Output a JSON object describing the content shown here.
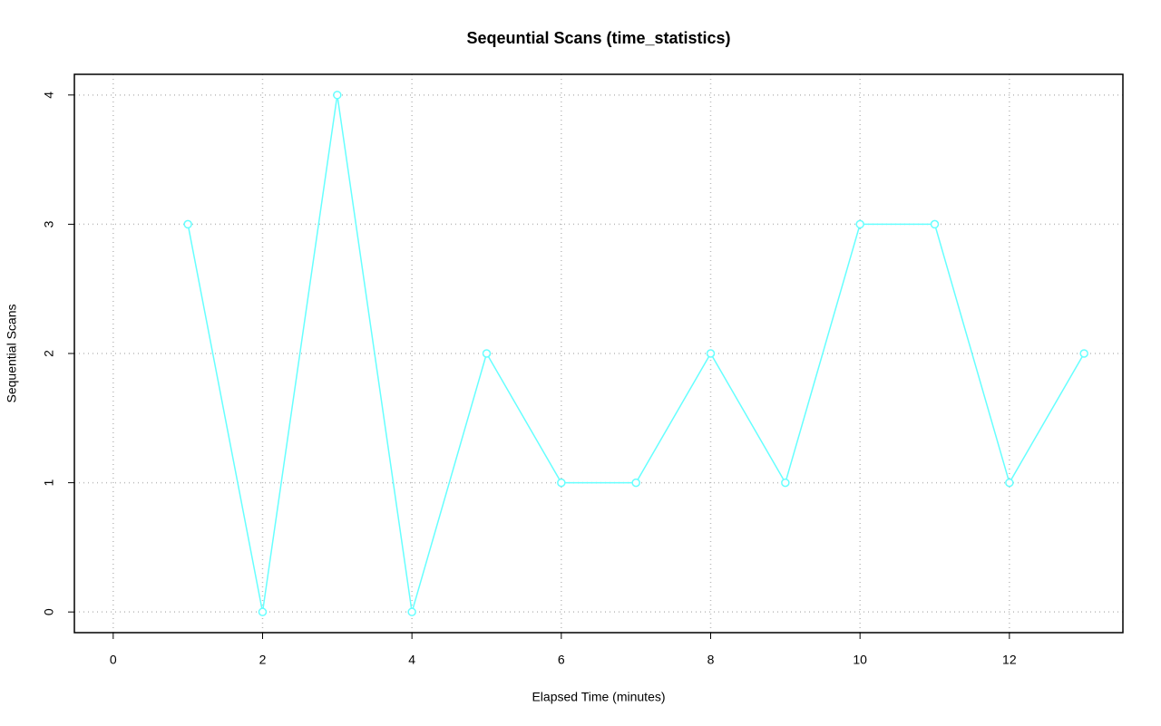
{
  "chart_data": {
    "type": "line",
    "title": "Seqeuntial Scans (time_statistics)",
    "x_label": "Elapsed Time (minutes)",
    "y_label": "Sequential Scans",
    "x": [
      1,
      2,
      3,
      4,
      5,
      6,
      7,
      8,
      9,
      10,
      11,
      12,
      13
    ],
    "series": [
      {
        "name": "Sequential Scans",
        "color": "#66ffff",
        "values": [
          3,
          0,
          4,
          0,
          2,
          1,
          1,
          2,
          1,
          3,
          3,
          1,
          2
        ]
      }
    ],
    "xlim": [
      -0.52,
      13.52
    ],
    "xticks": [
      0,
      2,
      4,
      6,
      8,
      10,
      12
    ],
    "ylim": [
      -0.16,
      4.16
    ],
    "yticks": [
      0,
      1,
      2,
      3,
      4
    ],
    "grid": true,
    "markers": "open-circle"
  }
}
